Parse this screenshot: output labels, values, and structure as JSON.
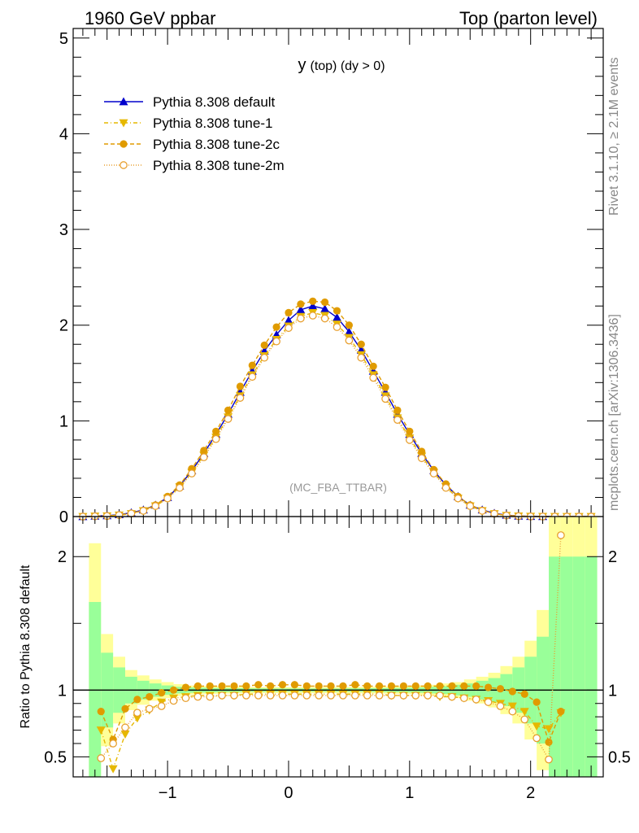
{
  "header": {
    "left": "1960 GeV ppbar",
    "right": "Top (parton level)"
  },
  "side_labels": {
    "rivet": "Rivet 3.1.10, ≥ 2.1M events",
    "mcplots": "mcplots.cern.ch [arXiv:1306.3436]"
  },
  "chart_data": [
    {
      "type": "line",
      "title": "y (top) (dy > 0)",
      "title_main": "y",
      "title_sub": "(top) (dy > 0)",
      "watermark": "(MC_FBA_TTBAR)",
      "xlim": [
        -1.78,
        2.6
      ],
      "ylim": [
        0,
        5.1
      ],
      "x_ticks": [
        -1,
        0,
        1,
        2
      ],
      "x_tick_labels": [
        "−1",
        "0",
        "1",
        "2"
      ],
      "y_ticks": [
        0,
        1,
        2,
        3,
        4,
        5
      ],
      "y_tick_labels": [
        "0",
        "1",
        "2",
        "3",
        "4",
        "5"
      ],
      "legend_position": "top-left",
      "x": [
        -1.7,
        -1.6,
        -1.5,
        -1.4,
        -1.3,
        -1.2,
        -1.1,
        -1.0,
        -0.9,
        -0.8,
        -0.7,
        -0.6,
        -0.5,
        -0.4,
        -0.3,
        -0.2,
        -0.1,
        0.0,
        0.1,
        0.2,
        0.3,
        0.4,
        0.5,
        0.6,
        0.7,
        0.8,
        0.9,
        1.0,
        1.1,
        1.2,
        1.3,
        1.4,
        1.5,
        1.6,
        1.7,
        1.8,
        1.9,
        2.0,
        2.1,
        2.2,
        2.3,
        2.4,
        2.5
      ],
      "series": [
        {
          "name": "Pythia 8.308 default",
          "color": "#0000cc",
          "marker": "triangle-up",
          "dash": "solid",
          "values": [
            0.0,
            0.005,
            0.01,
            0.02,
            0.04,
            0.07,
            0.12,
            0.2,
            0.32,
            0.48,
            0.66,
            0.86,
            1.07,
            1.3,
            1.52,
            1.73,
            1.9,
            2.05,
            2.16,
            2.2,
            2.17,
            2.08,
            1.93,
            1.74,
            1.52,
            1.3,
            1.07,
            0.86,
            0.66,
            0.48,
            0.33,
            0.21,
            0.12,
            0.07,
            0.035,
            0.015,
            0.006,
            0.002,
            0.001,
            0.0,
            0.0,
            0.0,
            0.0
          ]
        },
        {
          "name": "Pythia 8.308 tune-1",
          "color": "#e6b800",
          "marker": "triangle-down",
          "dash": "5,3,1,3",
          "values": [
            0.0,
            0.004,
            0.006,
            0.015,
            0.03,
            0.06,
            0.11,
            0.19,
            0.31,
            0.46,
            0.64,
            0.83,
            1.04,
            1.26,
            1.48,
            1.68,
            1.85,
            1.99,
            2.09,
            2.13,
            2.1,
            2.01,
            1.87,
            1.69,
            1.48,
            1.26,
            1.03,
            0.82,
            0.63,
            0.46,
            0.31,
            0.19,
            0.11,
            0.06,
            0.03,
            0.012,
            0.005,
            0.002,
            0.001,
            0.0,
            0.0,
            0.0,
            0.0
          ]
        },
        {
          "name": "Pythia 8.308 tune-2c",
          "color": "#e09b00",
          "marker": "circle-filled",
          "dash": "5,3",
          "values": [
            0.0,
            0.004,
            0.008,
            0.017,
            0.035,
            0.065,
            0.12,
            0.21,
            0.33,
            0.5,
            0.69,
            0.89,
            1.11,
            1.36,
            1.58,
            1.79,
            1.98,
            2.13,
            2.22,
            2.25,
            2.24,
            2.15,
            2.0,
            1.8,
            1.57,
            1.35,
            1.11,
            0.89,
            0.68,
            0.49,
            0.34,
            0.21,
            0.12,
            0.065,
            0.03,
            0.012,
            0.005,
            0.002,
            0.001,
            0.0,
            0.0,
            0.0,
            0.0
          ]
        },
        {
          "name": "Pythia 8.308 tune-2m",
          "color": "#e8a030",
          "marker": "circle-open",
          "dash": "1,2",
          "values": [
            0.0,
            0.003,
            0.006,
            0.015,
            0.032,
            0.06,
            0.11,
            0.19,
            0.3,
            0.45,
            0.62,
            0.81,
            1.02,
            1.24,
            1.46,
            1.66,
            1.83,
            1.97,
            2.07,
            2.1,
            2.07,
            1.98,
            1.84,
            1.66,
            1.45,
            1.23,
            1.01,
            0.8,
            0.61,
            0.45,
            0.3,
            0.19,
            0.11,
            0.06,
            0.03,
            0.011,
            0.004,
            0.0015,
            0.0005,
            0.0,
            0.0,
            0.0,
            0.0
          ]
        }
      ]
    },
    {
      "type": "line",
      "title": "",
      "ylabel": "Ratio to Pythia 8.308 default",
      "xlim": [
        -1.78,
        2.6
      ],
      "ylim": [
        0.35,
        2.3
      ],
      "x_ticks": [
        -1,
        0,
        1,
        2
      ],
      "x_tick_labels": [
        "−1",
        "0",
        "1",
        "2"
      ],
      "y_ticks": [
        0.5,
        1,
        2
      ],
      "y_tick_labels": [
        "0.5",
        "1",
        "2"
      ],
      "reference_line": 1,
      "band_x": [
        -1.6,
        -1.5,
        -1.4,
        -1.3,
        -1.2,
        -1.1,
        -1.0,
        -0.9,
        -0.8,
        -0.7,
        -0.6,
        -0.5,
        -0.4,
        -0.3,
        -0.2,
        -0.1,
        0.0,
        0.1,
        0.2,
        0.3,
        0.4,
        0.5,
        0.6,
        0.7,
        0.8,
        0.9,
        1.0,
        1.1,
        1.2,
        1.3,
        1.4,
        1.5,
        1.6,
        1.7,
        1.8,
        1.9,
        2.0,
        2.1,
        2.2,
        2.3,
        2.4,
        2.5
      ],
      "band_green": [
        0.66,
        0.28,
        0.17,
        0.1,
        0.07,
        0.05,
        0.035,
        0.025,
        0.02,
        0.018,
        0.016,
        0.015,
        0.014,
        0.013,
        0.013,
        0.012,
        0.012,
        0.012,
        0.012,
        0.012,
        0.012,
        0.013,
        0.013,
        0.014,
        0.015,
        0.016,
        0.018,
        0.02,
        0.025,
        0.03,
        0.04,
        0.05,
        0.07,
        0.09,
        0.12,
        0.17,
        0.25,
        0.4,
        1.0,
        1.0,
        1.0,
        1.0
      ],
      "band_yellow": [
        1.1,
        0.42,
        0.25,
        0.15,
        0.11,
        0.08,
        0.06,
        0.045,
        0.035,
        0.03,
        0.028,
        0.026,
        0.024,
        0.023,
        0.022,
        0.022,
        0.022,
        0.022,
        0.022,
        0.022,
        0.022,
        0.023,
        0.024,
        0.025,
        0.026,
        0.028,
        0.03,
        0.035,
        0.04,
        0.05,
        0.06,
        0.08,
        0.1,
        0.13,
        0.18,
        0.25,
        0.37,
        0.6,
        1.3,
        1.3,
        1.3,
        1.3
      ],
      "series": [
        {
          "name": "Pythia 8.308 tune-1",
          "color": "#e6b800",
          "marker": "triangle-down",
          "dash": "5,3,1,3",
          "x": [
            -1.55,
            -1.45,
            -1.35,
            -1.25,
            -1.15,
            -1.05,
            -0.95,
            -0.85,
            -0.75,
            -0.65,
            -0.55,
            -0.45,
            -0.35,
            -0.25,
            -0.15,
            -0.05,
            0.05,
            0.15,
            0.25,
            0.35,
            0.45,
            0.55,
            0.65,
            0.75,
            0.85,
            0.95,
            1.05,
            1.15,
            1.25,
            1.35,
            1.45,
            1.55,
            1.65,
            1.75,
            1.85,
            1.95,
            2.05,
            2.15,
            2.25
          ],
          "values": [
            0.7,
            0.41,
            0.67,
            0.79,
            0.85,
            0.91,
            0.94,
            0.95,
            0.96,
            0.96,
            0.96,
            0.96,
            0.97,
            0.97,
            0.97,
            0.97,
            0.97,
            0.97,
            0.97,
            0.97,
            0.97,
            0.97,
            0.97,
            0.97,
            0.96,
            0.96,
            0.96,
            0.96,
            0.95,
            0.95,
            0.94,
            0.93,
            0.92,
            0.9,
            0.88,
            0.84,
            0.73,
            0.71,
            0.83
          ]
        },
        {
          "name": "Pythia 8.308 tune-2c",
          "color": "#e09b00",
          "marker": "circle-filled",
          "dash": "5,3",
          "x": [
            -1.55,
            -1.45,
            -1.35,
            -1.25,
            -1.15,
            -1.05,
            -0.95,
            -0.85,
            -0.75,
            -0.65,
            -0.55,
            -0.45,
            -0.35,
            -0.25,
            -0.15,
            -0.05,
            0.05,
            0.15,
            0.25,
            0.35,
            0.45,
            0.55,
            0.65,
            0.75,
            0.85,
            0.95,
            1.05,
            1.15,
            1.25,
            1.35,
            1.45,
            1.55,
            1.65,
            1.75,
            1.85,
            1.95,
            2.05,
            2.15,
            2.25
          ],
          "values": [
            0.84,
            0.63,
            0.86,
            0.93,
            0.95,
            0.98,
            1.0,
            1.02,
            1.03,
            1.03,
            1.03,
            1.03,
            1.03,
            1.04,
            1.03,
            1.04,
            1.04,
            1.03,
            1.03,
            1.03,
            1.03,
            1.04,
            1.03,
            1.03,
            1.03,
            1.03,
            1.03,
            1.03,
            1.03,
            1.03,
            1.03,
            1.03,
            1.02,
            1.01,
            0.99,
            0.97,
            0.91,
            0.61,
            0.84
          ]
        },
        {
          "name": "Pythia 8.308 tune-2m",
          "color": "#e8a030",
          "marker": "circle-open",
          "dash": "1,2",
          "x": [
            -1.55,
            -1.45,
            -1.35,
            -1.25,
            -1.15,
            -1.05,
            -0.95,
            -0.85,
            -0.75,
            -0.65,
            -0.55,
            -0.45,
            -0.35,
            -0.25,
            -0.15,
            -0.05,
            0.05,
            0.15,
            0.25,
            0.35,
            0.45,
            0.55,
            0.65,
            0.75,
            0.85,
            0.95,
            1.05,
            1.15,
            1.25,
            1.35,
            1.45,
            1.55,
            1.65,
            1.75,
            1.85,
            1.95,
            2.05,
            2.15,
            2.25
          ],
          "values": [
            0.49,
            0.6,
            0.72,
            0.83,
            0.86,
            0.88,
            0.92,
            0.94,
            0.95,
            0.95,
            0.96,
            0.96,
            0.96,
            0.96,
            0.96,
            0.96,
            0.96,
            0.96,
            0.96,
            0.96,
            0.96,
            0.96,
            0.96,
            0.96,
            0.96,
            0.96,
            0.96,
            0.96,
            0.96,
            0.95,
            0.94,
            0.93,
            0.91,
            0.88,
            0.84,
            0.78,
            0.64,
            0.48,
            2.16
          ]
        }
      ]
    }
  ]
}
